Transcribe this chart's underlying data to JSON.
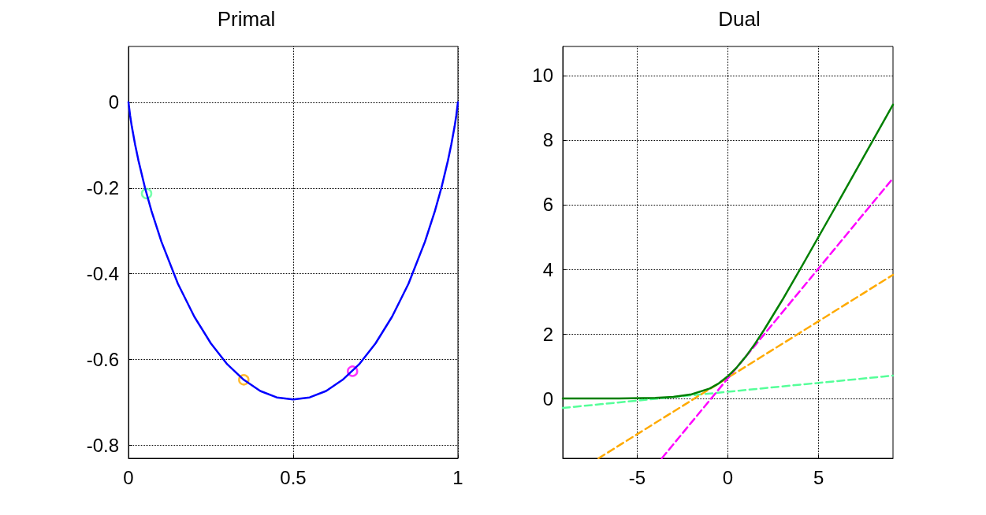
{
  "chart_data": [
    {
      "type": "line",
      "title": "Primal",
      "xlim": [
        0,
        1
      ],
      "xticks": [
        0,
        0.5,
        1
      ],
      "ylim": [
        -0.83,
        0.13
      ],
      "yticks": [
        -0.8,
        -0.6,
        -0.4,
        -0.2,
        0
      ],
      "grid": true,
      "marker": "none",
      "line_style": "solid",
      "series": [
        {
          "color": "#0000ff",
          "x": [
            0,
            0.005,
            0.01,
            0.02,
            0.03,
            0.05,
            0.07,
            0.1,
            0.15,
            0.2,
            0.25,
            0.3,
            0.35,
            0.4,
            0.45,
            0.5,
            0.55,
            0.6,
            0.65,
            0.7,
            0.75,
            0.8,
            0.85,
            0.9,
            0.93,
            0.95,
            0.97,
            0.98,
            0.99,
            0.995,
            1
          ],
          "values": [
            0,
            -0.031,
            -0.056,
            -0.098,
            -0.135,
            -0.199,
            -0.254,
            -0.325,
            -0.423,
            -0.5,
            -0.562,
            -0.611,
            -0.647,
            -0.673,
            -0.688,
            -0.693,
            -0.688,
            -0.673,
            -0.647,
            -0.611,
            -0.562,
            -0.5,
            -0.423,
            -0.325,
            -0.254,
            -0.199,
            -0.135,
            -0.098,
            -0.056,
            -0.031,
            0
          ]
        },
        {
          "type": "scatter",
          "marker": "circle",
          "color": "#55ff99",
          "x": [
            0.055
          ],
          "values": [
            -0.213
          ]
        },
        {
          "type": "scatter",
          "marker": "circle",
          "color": "#ffaa00",
          "x": [
            0.35
          ],
          "values": [
            -0.647
          ]
        },
        {
          "type": "scatter",
          "marker": "circle",
          "color": "#ff00ff",
          "x": [
            0.68
          ],
          "values": [
            -0.627
          ]
        }
      ]
    },
    {
      "type": "line",
      "title": "Dual",
      "xlim": [
        -9.1,
        9.1
      ],
      "xticks": [
        -5,
        0,
        5
      ],
      "ylim": [
        -1.85,
        10.9
      ],
      "yticks": [
        0,
        2,
        4,
        6,
        8,
        10
      ],
      "grid": true,
      "marker": "none",
      "series": [
        {
          "color": "#55ff99",
          "line_style": "dashed",
          "x": [
            -9.1,
            9.1
          ],
          "values": [
            -0.29,
            0.71
          ]
        },
        {
          "color": "#ffaa00",
          "line_style": "dashed",
          "x": [
            -7.13,
            9.1
          ],
          "values": [
            -1.85,
            3.83
          ]
        },
        {
          "color": "#ff00ff",
          "line_style": "dashed",
          "x": [
            -3.64,
            9.1
          ],
          "values": [
            -1.85,
            6.82
          ]
        },
        {
          "color": "#008000",
          "line_style": "solid",
          "x": [
            -9.1,
            -6,
            -4,
            -3,
            -2,
            -1,
            -0.5,
            0,
            0.5,
            1,
            1.5,
            2,
            3,
            4,
            6,
            9.1
          ],
          "values": [
            0,
            0,
            0.02,
            0.05,
            0.13,
            0.31,
            0.47,
            0.69,
            0.97,
            1.31,
            1.7,
            2.13,
            3.05,
            4.02,
            6,
            9.1
          ]
        }
      ]
    }
  ]
}
